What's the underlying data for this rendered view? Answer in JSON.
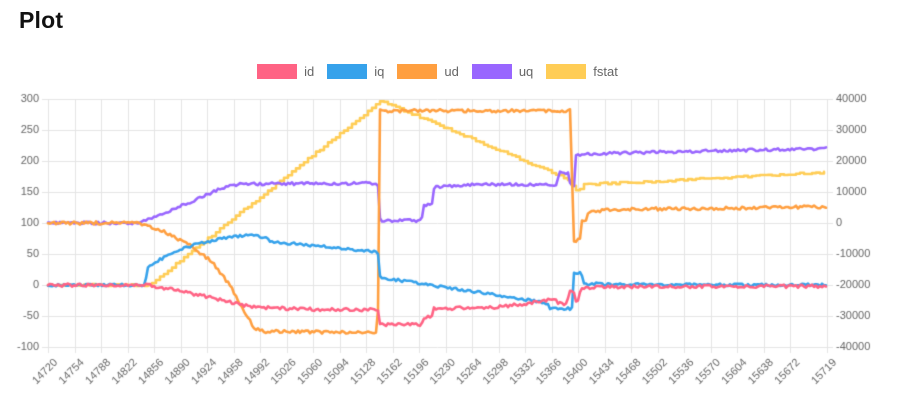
{
  "page": {
    "title": "Plot"
  },
  "legend": [
    {
      "label": "id",
      "color": "#FF6384"
    },
    {
      "label": "iq",
      "color": "#36A2EB"
    },
    {
      "label": "ud",
      "color": "#FF9F40"
    },
    {
      "label": "uq",
      "color": "#9966FF"
    },
    {
      "label": "fstat",
      "color": "#FFCD56"
    }
  ],
  "chart_data": {
    "type": "line",
    "title": "Plot",
    "legend_position": "top-center",
    "grid": true,
    "grid_color": "#e5e5e5",
    "tick_color": "#666666",
    "x_range": [
      14720,
      15719
    ],
    "x_ticks": [
      "14720",
      "14754",
      "14788",
      "14822",
      "14856",
      "14890",
      "14924",
      "14958",
      "14992",
      "15026",
      "15060",
      "15094",
      "15128",
      "15162",
      "15196",
      "15230",
      "15264",
      "15298",
      "15332",
      "15366",
      "15400",
      "15434",
      "15468",
      "15502",
      "15536",
      "15570",
      "15604",
      "15638",
      "15672",
      "15719"
    ],
    "left_axis": {
      "min": -100,
      "max": 300,
      "ticks": [
        "300",
        "250",
        "200",
        "150",
        "100",
        "50",
        "0",
        "-50",
        "-100"
      ]
    },
    "right_axis": {
      "min": -40000,
      "max": 40000,
      "ticks": [
        "40000",
        "30000",
        "20000",
        "10000",
        "0",
        "-10000",
        "-20000",
        "-30000",
        "-40000"
      ],
      "mapping_note": "right axis is aligned so that right = left*200 - 20000"
    },
    "values_note": "all series keypoints below are given as [x, value-in-left-axis-units]; fstat reads on the right axis via the mapping (start -20000, peak ~39000, end ~16400)",
    "series": [
      {
        "name": "id",
        "color": "#FF6384",
        "axis": "left",
        "noise": 2.6,
        "stepped": false,
        "points": [
          [
            14720,
            0
          ],
          [
            14846,
            0
          ],
          [
            14880,
            -7
          ],
          [
            14920,
            -18
          ],
          [
            14950,
            -27
          ],
          [
            14983,
            -36
          ],
          [
            15050,
            -39
          ],
          [
            15143,
            -40
          ],
          [
            15146,
            -64
          ],
          [
            15199,
            -64
          ],
          [
            15202,
            -52
          ],
          [
            15212,
            -52
          ],
          [
            15215,
            -38
          ],
          [
            15280,
            -37
          ],
          [
            15330,
            -31
          ],
          [
            15362,
            -24
          ],
          [
            15370,
            -22
          ],
          [
            15374,
            -30
          ],
          [
            15386,
            -30
          ],
          [
            15388,
            -12
          ],
          [
            15395,
            -12
          ],
          [
            15397,
            -24
          ],
          [
            15401,
            -24
          ],
          [
            15403,
            -5
          ],
          [
            15450,
            -3
          ],
          [
            15719,
            -2
          ]
        ]
      },
      {
        "name": "iq",
        "color": "#36A2EB",
        "axis": "left",
        "noise": 2.2,
        "stepped": false,
        "points": [
          [
            14720,
            0
          ],
          [
            14845,
            0
          ],
          [
            14847,
            28
          ],
          [
            14865,
            42
          ],
          [
            14900,
            62
          ],
          [
            14935,
            73
          ],
          [
            14975,
            81
          ],
          [
            15000,
            77
          ],
          [
            15005,
            70
          ],
          [
            15040,
            66
          ],
          [
            15090,
            60
          ],
          [
            15140,
            54
          ],
          [
            15143,
            53
          ],
          [
            15146,
            12
          ],
          [
            15190,
            4
          ],
          [
            15240,
            -6
          ],
          [
            15290,
            -15
          ],
          [
            15340,
            -25
          ],
          [
            15360,
            -30
          ],
          [
            15364,
            -38
          ],
          [
            15392,
            -38
          ],
          [
            15394,
            20
          ],
          [
            15404,
            20
          ],
          [
            15406,
            2
          ],
          [
            15450,
            1
          ],
          [
            15719,
            0
          ]
        ]
      },
      {
        "name": "ud",
        "color": "#FF9F40",
        "axis": "left",
        "noise": 2.6,
        "stepped": false,
        "points": [
          [
            14720,
            100
          ],
          [
            14834,
            100
          ],
          [
            14868,
            86
          ],
          [
            14900,
            66
          ],
          [
            14930,
            38
          ],
          [
            14953,
            0
          ],
          [
            14970,
            -38
          ],
          [
            14985,
            -70
          ],
          [
            15000,
            -75
          ],
          [
            15143,
            -77
          ],
          [
            15145,
            281
          ],
          [
            15391,
            281
          ],
          [
            15393,
            72
          ],
          [
            15402,
            72
          ],
          [
            15404,
            104
          ],
          [
            15411,
            104
          ],
          [
            15413,
            119
          ],
          [
            15450,
            122
          ],
          [
            15719,
            126
          ]
        ]
      },
      {
        "name": "uq",
        "color": "#9966FF",
        "axis": "left",
        "noise": 2.2,
        "stepped": false,
        "points": [
          [
            14720,
            100
          ],
          [
            14834,
            100
          ],
          [
            14860,
            111
          ],
          [
            14890,
            127
          ],
          [
            14915,
            141
          ],
          [
            14945,
            157
          ],
          [
            14966,
            163
          ],
          [
            15143,
            164
          ],
          [
            15146,
            104
          ],
          [
            15199,
            104
          ],
          [
            15202,
            129
          ],
          [
            15212,
            129
          ],
          [
            15215,
            157
          ],
          [
            15260,
            162
          ],
          [
            15373,
            162
          ],
          [
            15375,
            181
          ],
          [
            15388,
            181
          ],
          [
            15390,
            159
          ],
          [
            15395,
            159
          ],
          [
            15397,
            210
          ],
          [
            15460,
            213
          ],
          [
            15560,
            216
          ],
          [
            15719,
            220
          ]
        ]
      },
      {
        "name": "fstat",
        "color": "#FFCD56",
        "axis": "right",
        "noise": 1.6,
        "stepped": true,
        "points": [
          [
            14720,
            0
          ],
          [
            14850,
            0
          ],
          [
            15147,
            297
          ],
          [
            15390,
            169
          ],
          [
            15393,
            154
          ],
          [
            15402,
            154
          ],
          [
            15404,
            162
          ],
          [
            15500,
            167
          ],
          [
            15719,
            182
          ]
        ]
      }
    ]
  }
}
